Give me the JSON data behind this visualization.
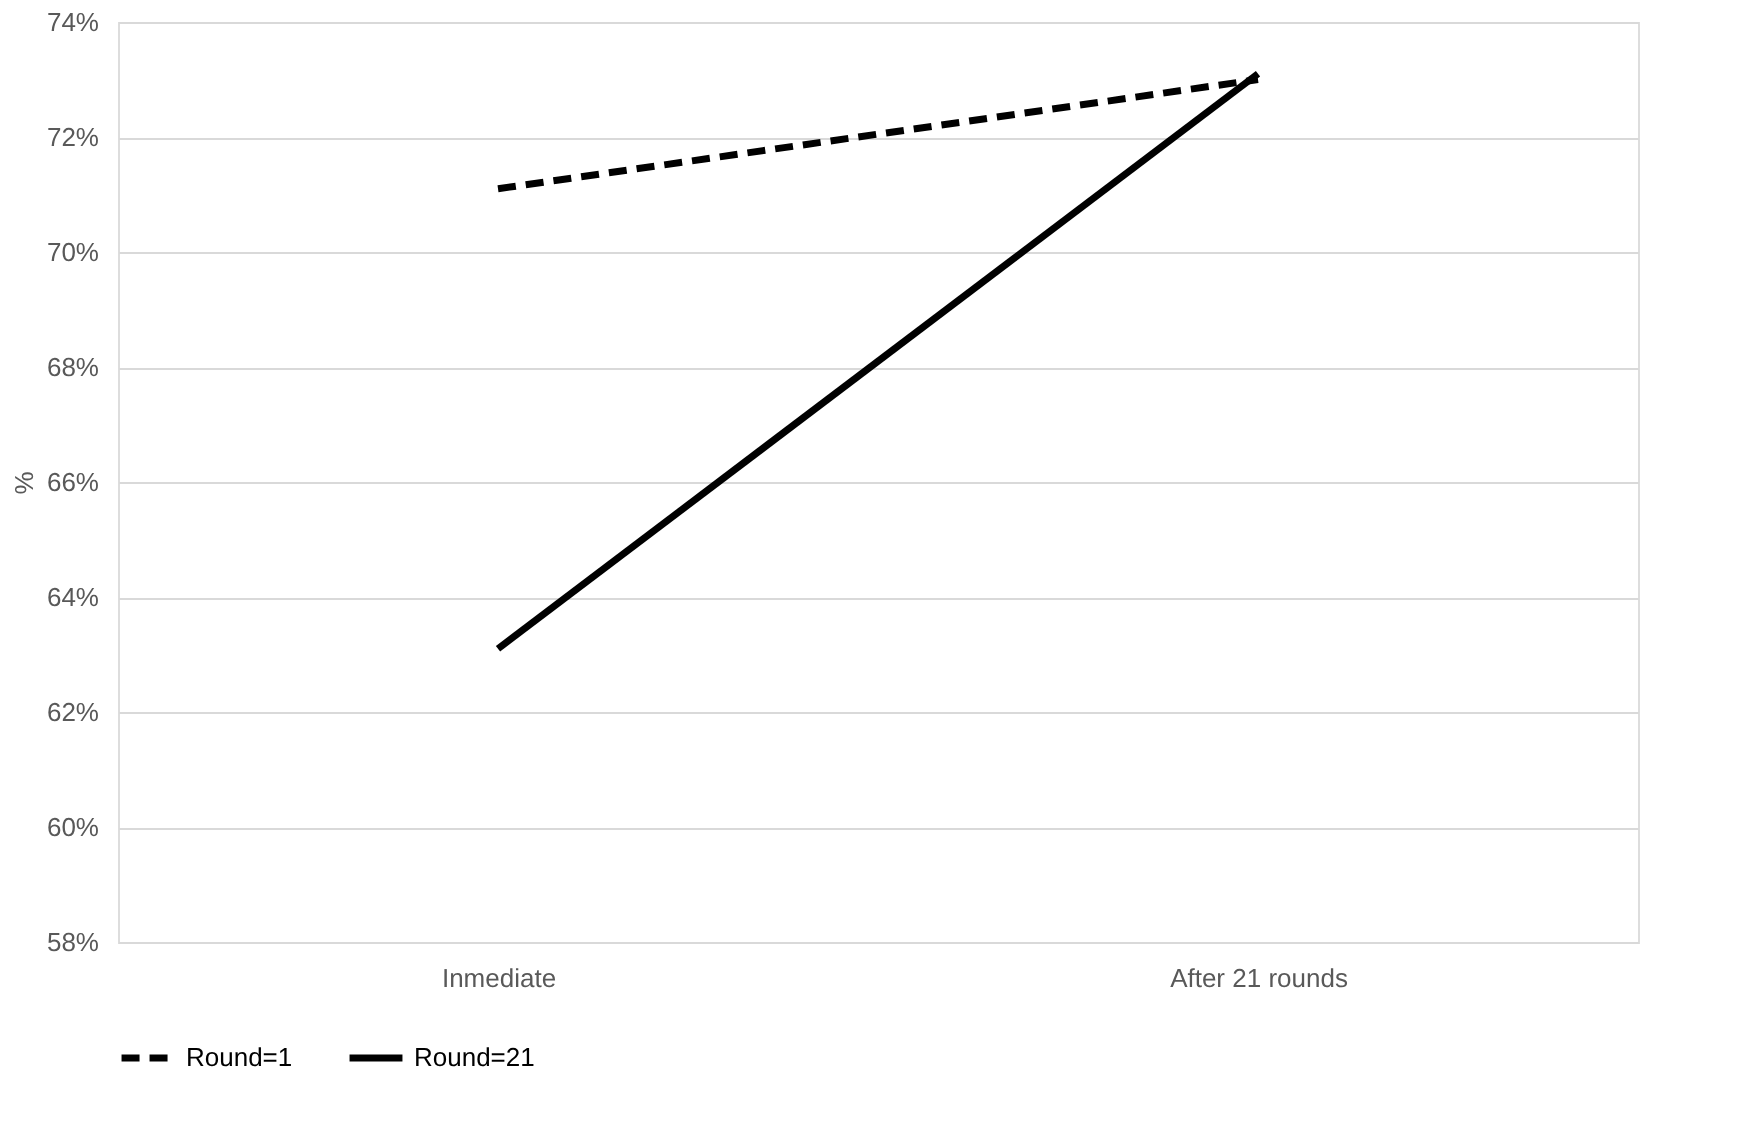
{
  "chart_data": {
    "type": "line",
    "ylabel": "%",
    "categories": [
      "Inmediate",
      "After 21 rounds"
    ],
    "series": [
      {
        "name": "Round=1",
        "color": "#000000",
        "line_style": "dashed",
        "values": [
          71.1,
          73.0
        ]
      },
      {
        "name": "Round=21",
        "color": "#000000",
        "line_style": "solid",
        "values": [
          63.1,
          73.1
        ]
      }
    ],
    "ylim": [
      58,
      74
    ],
    "yticks": [
      {
        "value": 58,
        "label": "58%"
      },
      {
        "value": 60,
        "label": "60%"
      },
      {
        "value": 62,
        "label": "62%"
      },
      {
        "value": 64,
        "label": "64%"
      },
      {
        "value": 66,
        "label": "66%"
      },
      {
        "value": 68,
        "label": "68%"
      },
      {
        "value": 70,
        "label": "70%"
      },
      {
        "value": 72,
        "label": "72%"
      },
      {
        "value": 74,
        "label": "74%"
      }
    ],
    "grid": "y",
    "legend": "bottom",
    "marker": "none"
  }
}
